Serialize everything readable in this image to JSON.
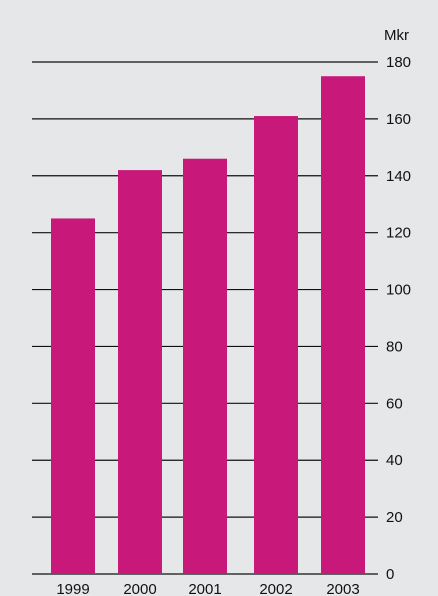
{
  "chart_data": {
    "type": "bar",
    "unit": "Mkr",
    "categories": [
      "1999",
      "2000",
      "2001",
      "2002",
      "2003"
    ],
    "values": [
      125,
      142,
      146,
      161,
      175
    ],
    "ylim": [
      0,
      180
    ],
    "yticks": [
      0,
      20,
      40,
      60,
      80,
      100,
      120,
      140,
      160,
      180
    ],
    "grid": true,
    "y_axis_side": "right",
    "bar_color": "#c8197a",
    "grid_color": "#111111"
  }
}
